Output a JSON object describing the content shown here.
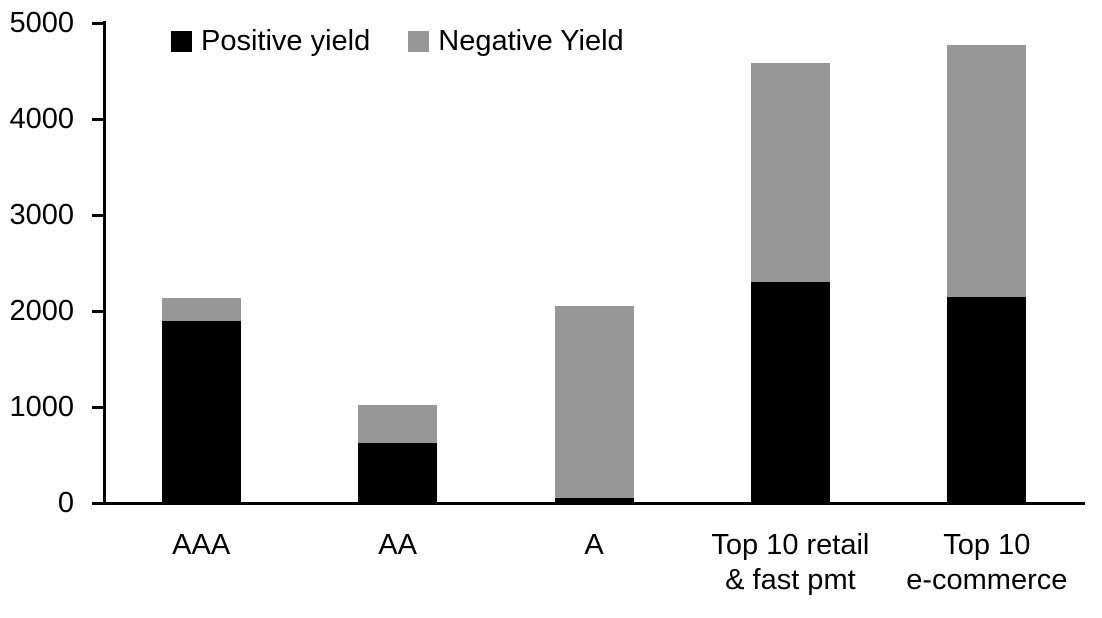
{
  "chart_data": {
    "type": "bar",
    "stacked": true,
    "title": "",
    "xlabel": "",
    "ylabel": "",
    "categories": [
      "AAA",
      "AA",
      "A",
      "Top 10 retail & fast pmt",
      "Top 10 e-commerce"
    ],
    "category_label_lines": [
      [
        "AAA"
      ],
      [
        "AA"
      ],
      [
        "A"
      ],
      [
        "Top 10 retail",
        "& fast pmt"
      ],
      [
        "Top 10",
        "e-commerce"
      ]
    ],
    "series": [
      {
        "name": "Positive yield",
        "color": "#000000",
        "values": [
          1900,
          630,
          50,
          2300,
          2150
        ]
      },
      {
        "name": "Negative Yield",
        "color": "#979797",
        "values": [
          240,
          390,
          2000,
          2280,
          2620
        ]
      }
    ],
    "totals": [
      2140,
      1020,
      2050,
      4580,
      4770
    ],
    "ylim": [
      0,
      5000
    ],
    "yticks": [
      0,
      1000,
      2000,
      3000,
      4000,
      5000
    ],
    "grid": false,
    "legend_position": "top-left-inside",
    "axis_color": "#000000",
    "background_color": "#ffffff"
  }
}
